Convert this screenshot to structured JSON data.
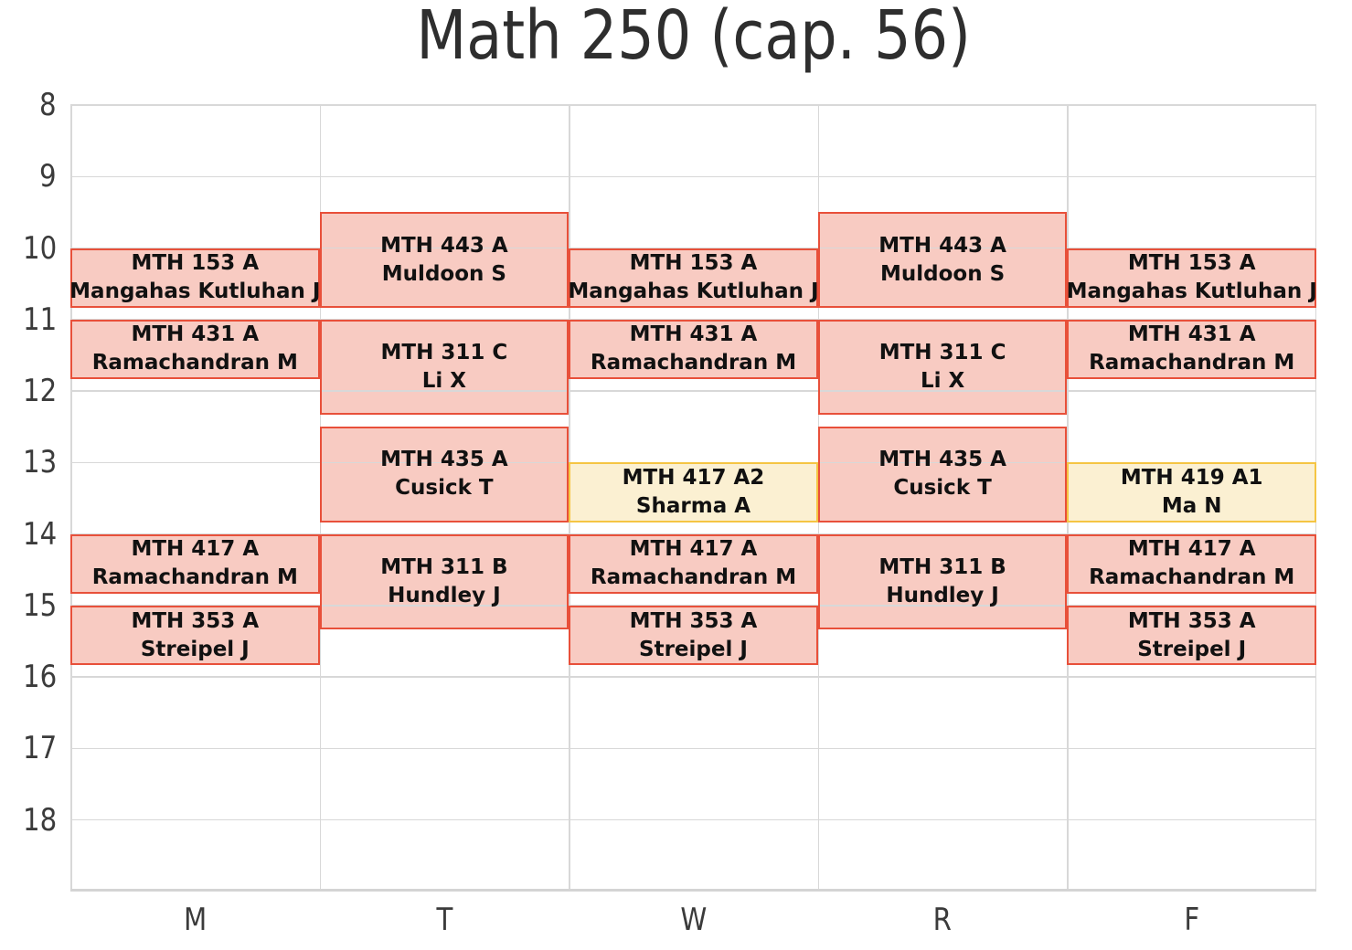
{
  "chart_data": {
    "type": "bar",
    "subtype": "weekly-course-schedule-gantt",
    "title": "Math 250 (cap. 56)",
    "xlabel": "",
    "ylabel": "",
    "x_categories": [
      "M",
      "T",
      "W",
      "R",
      "F"
    ],
    "y_ticks": [
      "8",
      "9",
      "10",
      "11",
      "12",
      "13",
      "14",
      "15",
      "16",
      "17",
      "18"
    ],
    "y_range": [
      8,
      19
    ],
    "y_unit": "hour-of-day",
    "grid": "on",
    "legend": "none",
    "colors": {
      "red_fill": "#f8cbc2",
      "red_border": "#e8503a",
      "yellow_fill": "#fbf0d2",
      "yellow_border": "#f5c543",
      "gridline": "#d8d8d8",
      "tick_text": "#3b3b3b",
      "title_text": "#2e2e2e",
      "event_text": "#111111"
    },
    "events": [
      {
        "day": "M",
        "start": "10:00",
        "end": "10:50",
        "start_h": 10.0,
        "end_h": 10.8333,
        "course": "MTH 153 A",
        "instructor": "Mangahas Kutluhan J",
        "style": "red"
      },
      {
        "day": "M",
        "start": "11:00",
        "end": "11:50",
        "start_h": 11.0,
        "end_h": 11.8333,
        "course": "MTH 431 A",
        "instructor": "Ramachandran M",
        "style": "red"
      },
      {
        "day": "M",
        "start": "14:00",
        "end": "14:50",
        "start_h": 14.0,
        "end_h": 14.8333,
        "course": "MTH 417 A",
        "instructor": "Ramachandran M",
        "style": "red"
      },
      {
        "day": "M",
        "start": "15:00",
        "end": "15:50",
        "start_h": 15.0,
        "end_h": 15.8333,
        "course": "MTH 353 A",
        "instructor": "Streipel J",
        "style": "red"
      },
      {
        "day": "T",
        "start": "9:30",
        "end": "10:50",
        "start_h": 9.5,
        "end_h": 10.8333,
        "course": "MTH 443 A",
        "instructor": "Muldoon S",
        "style": "red"
      },
      {
        "day": "T",
        "start": "11:00",
        "end": "12:20",
        "start_h": 11.0,
        "end_h": 12.3333,
        "course": "MTH 311 C",
        "instructor": "Li X",
        "style": "red"
      },
      {
        "day": "T",
        "start": "12:30",
        "end": "13:50",
        "start_h": 12.5,
        "end_h": 13.8333,
        "course": "MTH 435 A",
        "instructor": "Cusick T",
        "style": "red"
      },
      {
        "day": "T",
        "start": "14:00",
        "end": "15:20",
        "start_h": 14.0,
        "end_h": 15.3333,
        "course": "MTH 311 B",
        "instructor": "Hundley J",
        "style": "red"
      },
      {
        "day": "W",
        "start": "10:00",
        "end": "10:50",
        "start_h": 10.0,
        "end_h": 10.8333,
        "course": "MTH 153 A",
        "instructor": "Mangahas Kutluhan J",
        "style": "red"
      },
      {
        "day": "W",
        "start": "11:00",
        "end": "11:50",
        "start_h": 11.0,
        "end_h": 11.8333,
        "course": "MTH 431 A",
        "instructor": "Ramachandran M",
        "style": "red"
      },
      {
        "day": "W",
        "start": "13:00",
        "end": "13:50",
        "start_h": 13.0,
        "end_h": 13.8333,
        "course": "MTH 417 A2",
        "instructor": "Sharma A",
        "style": "yellow"
      },
      {
        "day": "W",
        "start": "14:00",
        "end": "14:50",
        "start_h": 14.0,
        "end_h": 14.8333,
        "course": "MTH 417 A",
        "instructor": "Ramachandran M",
        "style": "red"
      },
      {
        "day": "W",
        "start": "15:00",
        "end": "15:50",
        "start_h": 15.0,
        "end_h": 15.8333,
        "course": "MTH 353 A",
        "instructor": "Streipel J",
        "style": "red"
      },
      {
        "day": "R",
        "start": "9:30",
        "end": "10:50",
        "start_h": 9.5,
        "end_h": 10.8333,
        "course": "MTH 443 A",
        "instructor": "Muldoon S",
        "style": "red"
      },
      {
        "day": "R",
        "start": "11:00",
        "end": "12:20",
        "start_h": 11.0,
        "end_h": 12.3333,
        "course": "MTH 311 C",
        "instructor": "Li X",
        "style": "red"
      },
      {
        "day": "R",
        "start": "12:30",
        "end": "13:50",
        "start_h": 12.5,
        "end_h": 13.8333,
        "course": "MTH 435 A",
        "instructor": "Cusick T",
        "style": "red"
      },
      {
        "day": "R",
        "start": "14:00",
        "end": "15:20",
        "start_h": 14.0,
        "end_h": 15.3333,
        "course": "MTH 311 B",
        "instructor": "Hundley J",
        "style": "red"
      },
      {
        "day": "F",
        "start": "10:00",
        "end": "10:50",
        "start_h": 10.0,
        "end_h": 10.8333,
        "course": "MTH 153 A",
        "instructor": "Mangahas Kutluhan J",
        "style": "red"
      },
      {
        "day": "F",
        "start": "11:00",
        "end": "11:50",
        "start_h": 11.0,
        "end_h": 11.8333,
        "course": "MTH 431 A",
        "instructor": "Ramachandran M",
        "style": "red"
      },
      {
        "day": "F",
        "start": "13:00",
        "end": "13:50",
        "start_h": 13.0,
        "end_h": 13.8333,
        "course": "MTH 419 A1",
        "instructor": "Ma N",
        "style": "yellow"
      },
      {
        "day": "F",
        "start": "14:00",
        "end": "14:50",
        "start_h": 14.0,
        "end_h": 14.8333,
        "course": "MTH 417 A",
        "instructor": "Ramachandran M",
        "style": "red"
      },
      {
        "day": "F",
        "start": "15:00",
        "end": "15:50",
        "start_h": 15.0,
        "end_h": 15.8333,
        "course": "MTH 353 A",
        "instructor": "Streipel J",
        "style": "red"
      }
    ]
  }
}
